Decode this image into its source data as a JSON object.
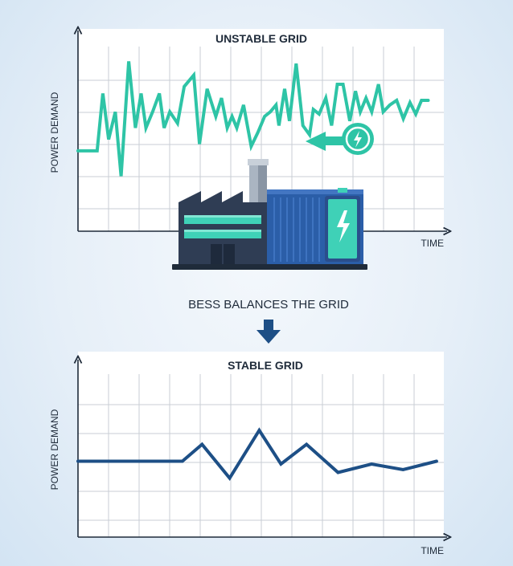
{
  "top_chart": {
    "title": "UNSTABLE GRID",
    "ylabel": "POWER DEMAND",
    "xlabel": "TIME",
    "line_color": "#2ec4a6"
  },
  "middle_caption": "BESS BALANCES THE GRID",
  "bottom_chart": {
    "title": "STABLE GRID",
    "ylabel": "POWER DEMAND",
    "xlabel": "TIME",
    "line_color": "#1d4f86"
  },
  "illustration": {
    "factory": "factory-icon",
    "battery": "battery-container-icon",
    "charging_badge": "lightning-bolt-icon",
    "arrow": "arrow-left-icon",
    "colors": {
      "teal": "#2ec4a6",
      "navy": "#2a3a52",
      "blue": "#2b5ea8"
    }
  },
  "chart_data": [
    {
      "type": "line",
      "title": "UNSTABLE GRID",
      "xlabel": "TIME",
      "ylabel": "POWER DEMAND",
      "grid": true,
      "series": [
        {
          "x": [
            0,
            1,
            1.3,
            1.6,
            1.95,
            2.25,
            2.65,
            3.0,
            3.3,
            3.55,
            3.9,
            4.25,
            4.5,
            4.8,
            5.2,
            5.55,
            6.05,
            6.35,
            6.75,
            7.2,
            7.5,
            7.8,
            8.05,
            8.3,
            8.65,
            9.05,
            9.4,
            9.75,
            10.05,
            10.35,
            10.5,
            10.8,
            11.05,
            11.4,
            11.75,
            12.1,
            12.3,
            12.6,
            12.95,
            13.25,
            13.55,
            13.85,
            14.2,
            14.5,
            14.75,
            15.05,
            15.35,
            15.7,
            15.95,
            16.3,
            16.65,
            17,
            17.35,
            17.65,
            17.95,
            18.3
          ],
          "y": [
            3.5,
            3.5,
            6,
            4,
            5.2,
            2.4,
            7.4,
            4.5,
            6,
            4.5,
            5.2,
            6,
            4.5,
            5.2,
            4.7,
            6.3,
            6.8,
            3.8,
            6.2,
            5,
            5.8,
            4.5,
            5,
            4.5,
            5.5,
            3.7,
            4.3,
            5,
            5.2,
            5.5,
            4.6,
            6.2,
            4.8,
            7.3,
            4.6,
            4.2,
            5.3,
            5.1,
            5.8,
            4.6,
            6.4,
            6.4,
            4.8,
            6.1,
            5.2,
            5.8,
            5.2,
            6.4,
            5.2,
            5.5,
            5.7,
            4.9,
            5.6,
            5.1,
            5.7,
            5.7
          ]
        }
      ]
    },
    {
      "type": "line",
      "title": "STABLE GRID",
      "xlabel": "TIME",
      "ylabel": "POWER DEMAND",
      "grid": true,
      "series": [
        {
          "x": [
            0,
            5.3,
            6.3,
            7.7,
            9.2,
            10.3,
            11.6,
            13.2,
            14.9,
            16.5,
            18.2
          ],
          "y": [
            2.7,
            2.7,
            3.3,
            2.1,
            3.8,
            2.6,
            3.3,
            2.3,
            2.6,
            2.4,
            2.7
          ]
        }
      ]
    }
  ]
}
